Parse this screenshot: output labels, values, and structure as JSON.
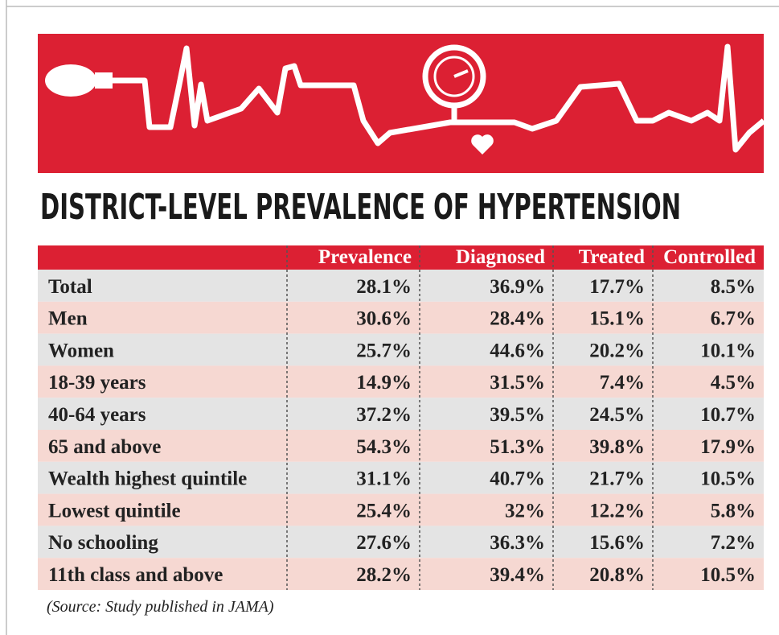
{
  "title": "DISTRICT-LEVEL PREVALENCE OF HYPERTENSION",
  "table": {
    "columns": [
      "Prevalence",
      "Diagnosed",
      "Treated",
      "Controlled"
    ],
    "rows": [
      [
        "Total",
        "28.1%",
        "36.9%",
        "17.7%",
        "8.5%"
      ],
      [
        "Men",
        "30.6%",
        "28.4%",
        "15.1%",
        "6.7%"
      ],
      [
        "Women",
        "25.7%",
        "44.6%",
        "20.2%",
        "10.1%"
      ],
      [
        "18-39 years",
        "14.9%",
        "31.5%",
        "7.4%",
        "4.5%"
      ],
      [
        "40-64 years",
        "37.2%",
        "39.5%",
        "24.5%",
        "10.7%"
      ],
      [
        "65 and above",
        "54.3%",
        "51.3%",
        "39.8%",
        "17.9%"
      ],
      [
        "Wealth highest quintile",
        "31.1%",
        "40.7%",
        "21.7%",
        "10.5%"
      ],
      [
        "Lowest quintile",
        "25.4%",
        "32%",
        "12.2%",
        "5.8%"
      ],
      [
        "No schooling",
        "27.6%",
        "36.3%",
        "15.6%",
        "7.2%"
      ],
      [
        "11th class and above",
        "28.2%",
        "39.4%",
        "20.8%",
        "10.5%"
      ]
    ]
  },
  "source": "(Source: Study published in JAMA)"
}
